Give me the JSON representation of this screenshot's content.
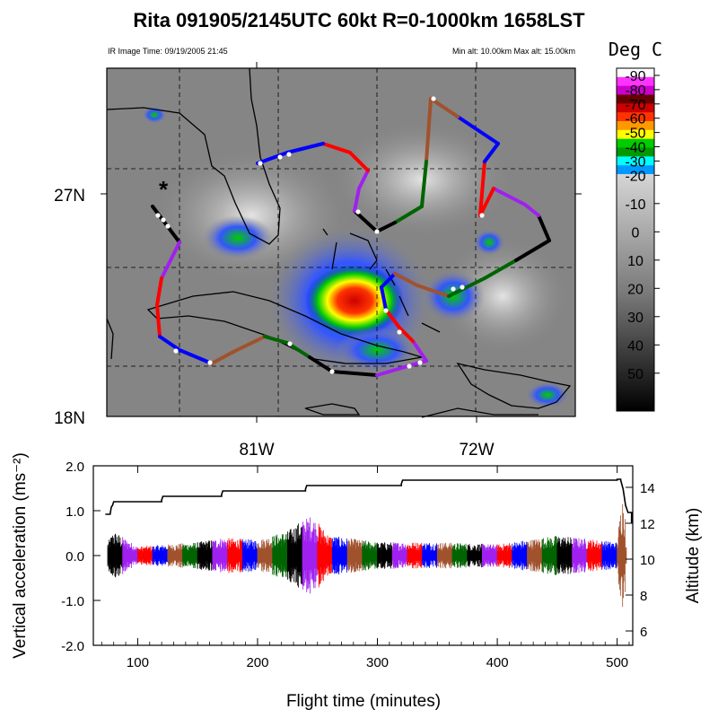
{
  "header": {
    "title": "Rita 091905/2145UTC 60kt  R=0-1000km 1658LST",
    "image_time": "IR Image Time: 09/19/2005 21:45",
    "altitude_range": "Min alt: 10.00km  Max alt: 15.00km"
  },
  "map": {
    "lat_labels": [
      "27N",
      "18N"
    ],
    "lon_labels": [
      "81W",
      "72W"
    ],
    "storm_marker": "*",
    "flight_leg_colors": [
      "#000000",
      "#a020f0",
      "#ff0000",
      "#0000ff",
      "#a0522d",
      "#006400"
    ]
  },
  "colorbar": {
    "title": "Deg C",
    "labels": [
      "-90",
      "-80",
      "-70",
      "-60",
      "-50",
      "-40",
      "-30",
      "-20",
      "-10",
      "0",
      "10",
      "20",
      "30",
      "40",
      "50"
    ],
    "colors": [
      "#ffffff",
      "#ff33ff",
      "#cc00cc",
      "#660000",
      "#cc0000",
      "#ff3300",
      "#ff9900",
      "#ffff00",
      "#00cc00",
      "#009900",
      "#00ffff",
      "#0099ff"
    ]
  },
  "chart_data": {
    "type": "line",
    "xlabel": "Flight time (minutes)",
    "ylabel": "Vertical acceleration (ms⁻²)",
    "y2label": "Altitude (km)",
    "xlim": [
      63,
      513
    ],
    "ylim": [
      -2.0,
      2.0
    ],
    "y2lim": [
      5.2,
      15.2
    ],
    "x_ticks": [
      "100",
      "200",
      "300",
      "400",
      "500"
    ],
    "y_ticks": [
      "2.0",
      "1.0",
      "0.0",
      "-1.0",
      "-2.0"
    ],
    "y2_ticks": [
      "14",
      "12",
      "10",
      "8",
      "6"
    ],
    "segment_colors": [
      "#000000",
      "#a020f0",
      "#ff0000",
      "#0000ff",
      "#a0522d",
      "#006400"
    ],
    "altitude": {
      "x": [
        73,
        77,
        78,
        79,
        80,
        120,
        121,
        170,
        171,
        240,
        241,
        320,
        321,
        500,
        503,
        505,
        507,
        509,
        512
      ],
      "y": [
        12.5,
        12.5,
        12.9,
        13.0,
        13.2,
        13.3,
        13.5,
        13.6,
        13.8,
        13.9,
        14.1,
        14.2,
        14.4,
        14.45,
        14.4,
        13.9,
        13.0,
        12.6,
        12.0
      ]
    },
    "acceleration_range": {
      "x": [
        75,
        80,
        100,
        150,
        170,
        200,
        225,
        235,
        245,
        260,
        300,
        350,
        400,
        450,
        500,
        503,
        505,
        507
      ],
      "amp": [
        0.3,
        0.55,
        0.2,
        0.3,
        0.4,
        0.35,
        0.55,
        0.75,
        0.9,
        0.45,
        0.3,
        0.3,
        0.25,
        0.45,
        0.3,
        1.1,
        1.4,
        0.9
      ]
    }
  }
}
